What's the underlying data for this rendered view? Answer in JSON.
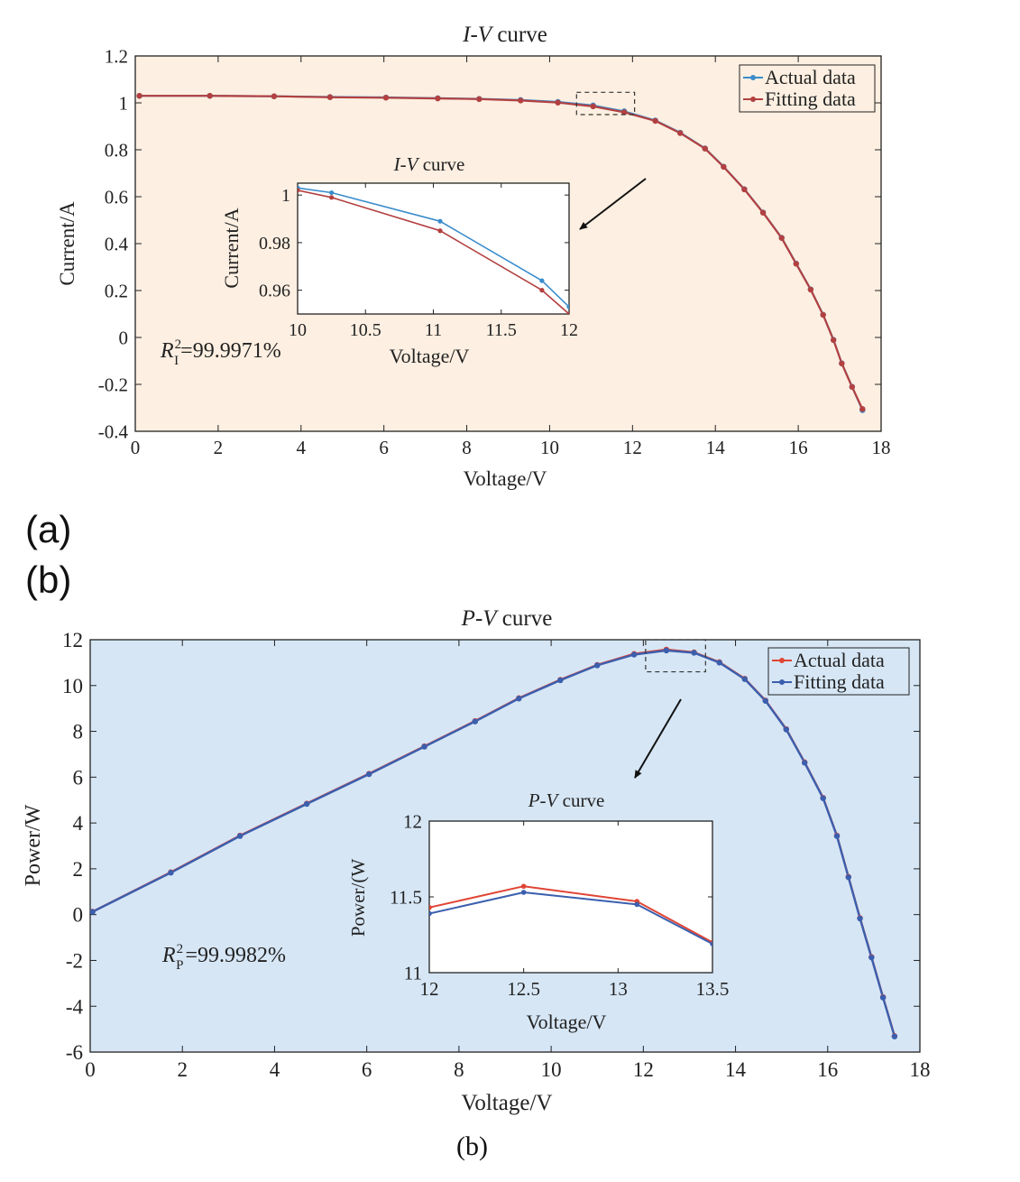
{
  "panel_labels": {
    "a": "(a)",
    "b": "(b)",
    "caption": "(b)"
  },
  "chart_data": [
    {
      "id": "iv-main",
      "type": "line",
      "title_italic": "I-V",
      "title_rest": " curve",
      "xlabel": "Voltage/V",
      "ylabel": "Current/A",
      "xlim": [
        0,
        18
      ],
      "ylim": [
        -0.4,
        1.2
      ],
      "xticks": [
        0,
        2,
        4,
        6,
        8,
        10,
        12,
        14,
        16,
        18
      ],
      "yticks": [
        -0.4,
        -0.2,
        0,
        0.2,
        0.4,
        0.6,
        0.8,
        1,
        1.2
      ],
      "ytick_labels": [
        "-0.4",
        "-0.2",
        "0",
        "0.2",
        "0.4",
        "0.6",
        "0.8",
        "1",
        "1.2"
      ],
      "annotation": {
        "prefix": "R",
        "sup": "2",
        "sub": "I",
        "value": "=99.9971%"
      },
      "background": "#fdefe1",
      "legend": {
        "position": "top-right",
        "entries": [
          "Actual data",
          "Fitting data"
        ]
      },
      "series": [
        {
          "name": "Actual data",
          "color": "#3a8ccc",
          "x": [
            0.1,
            1.8,
            3.35,
            4.7,
            6.05,
            7.3,
            8.3,
            9.3,
            10.2,
            11.05,
            11.8,
            12.55,
            13.15,
            13.75,
            14.2,
            14.7,
            15.15,
            15.6,
            15.95,
            16.3,
            16.6,
            16.85,
            17.05,
            17.3,
            17.55
          ],
          "y": [
            1.03,
            1.03,
            1.028,
            1.025,
            1.023,
            1.02,
            1.017,
            1.012,
            1.004,
            0.989,
            0.964,
            0.925,
            0.873,
            0.806,
            0.728,
            0.632,
            0.533,
            0.425,
            0.315,
            0.205,
            0.097,
            -0.01,
            -0.11,
            -0.21,
            -0.31
          ]
        },
        {
          "name": "Fitting data",
          "color": "#b34040",
          "x": [
            0.1,
            1.8,
            3.35,
            4.7,
            6.05,
            7.3,
            8.3,
            9.3,
            10.2,
            11.05,
            11.8,
            12.55,
            13.15,
            13.75,
            14.2,
            14.7,
            15.15,
            15.6,
            15.95,
            16.3,
            16.6,
            16.85,
            17.05,
            17.3,
            17.55
          ],
          "y": [
            1.03,
            1.03,
            1.028,
            1.024,
            1.022,
            1.019,
            1.016,
            1.01,
            1.001,
            0.985,
            0.96,
            0.923,
            0.871,
            0.805,
            0.727,
            0.631,
            0.532,
            0.424,
            0.314,
            0.204,
            0.096,
            -0.011,
            -0.111,
            -0.211,
            -0.305
          ]
        }
      ],
      "zoom_box": {
        "x": [
          10.65,
          12.05
        ],
        "y": [
          0.95,
          1.045
        ]
      }
    },
    {
      "id": "iv-inset",
      "type": "line",
      "title_italic": "I-V",
      "title_rest": " curve",
      "xlabel": "Voltage/V",
      "ylabel": "Current/A",
      "xlim": [
        10,
        12
      ],
      "ylim": [
        0.95,
        1.005
      ],
      "xticks": [
        10,
        10.5,
        11,
        11.5,
        12
      ],
      "yticks": [
        0.96,
        0.98,
        1
      ],
      "ytick_labels": [
        "0.96",
        "0.98",
        "1"
      ],
      "background": "#ffffff",
      "series": [
        {
          "name": "Actual data",
          "color": "#3a8ccc",
          "x": [
            10,
            10.25,
            11.05,
            11.8,
            12
          ],
          "y": [
            1.003,
            1.001,
            0.989,
            0.964,
            0.953
          ]
        },
        {
          "name": "Fitting data",
          "color": "#b34040",
          "x": [
            10,
            10.25,
            11.05,
            11.8,
            12
          ],
          "y": [
            1.002,
            0.999,
            0.985,
            0.96,
            0.95
          ]
        }
      ]
    },
    {
      "id": "pv-main",
      "type": "line",
      "title_italic": "P-V",
      "title_rest": " curve",
      "xlabel": "Voltage/V",
      "ylabel": "Power/W",
      "xlim": [
        0,
        18
      ],
      "ylim": [
        -6,
        12
      ],
      "xticks": [
        0,
        2,
        4,
        6,
        8,
        10,
        12,
        14,
        16,
        18
      ],
      "yticks": [
        -6,
        -4,
        -2,
        0,
        2,
        4,
        6,
        8,
        10,
        12
      ],
      "ytick_labels": [
        "-6",
        "-4",
        "-2",
        "0",
        "2",
        "4",
        "6",
        "8",
        "10",
        "12"
      ],
      "annotation": {
        "prefix": "R",
        "sup": "2",
        "sub": "P",
        "value": "=99.9982%"
      },
      "background": "#d6e6f5",
      "legend": {
        "position": "top-right",
        "entries": [
          "Actual data",
          "Fitting data"
        ]
      },
      "series": [
        {
          "name": "Actual data",
          "color": "#e04535",
          "x": [
            0.05,
            1.75,
            3.25,
            4.7,
            6.05,
            7.25,
            8.35,
            9.3,
            10.2,
            11.0,
            11.8,
            12.5,
            13.1,
            13.65,
            14.2,
            14.65,
            15.1,
            15.5,
            15.9,
            16.2,
            16.45,
            16.7,
            16.95,
            17.2,
            17.45
          ],
          "y": [
            0.13,
            1.85,
            3.45,
            4.85,
            6.15,
            7.35,
            8.45,
            9.45,
            10.25,
            10.9,
            11.38,
            11.57,
            11.45,
            11.02,
            10.3,
            9.35,
            8.1,
            6.65,
            5.1,
            3.45,
            1.65,
            -0.15,
            -1.85,
            -3.6,
            -5.3
          ]
        },
        {
          "name": "Fitting data",
          "color": "#3b5fae",
          "x": [
            0.05,
            1.75,
            3.25,
            4.7,
            6.05,
            7.25,
            8.35,
            9.3,
            10.2,
            11.0,
            11.8,
            12.5,
            13.1,
            13.65,
            14.2,
            14.65,
            15.1,
            15.5,
            15.9,
            16.2,
            16.45,
            16.7,
            16.95,
            17.2,
            17.45
          ],
          "y": [
            0.12,
            1.83,
            3.43,
            4.83,
            6.13,
            7.33,
            8.43,
            9.43,
            10.23,
            10.88,
            11.35,
            11.53,
            11.43,
            11.0,
            10.28,
            9.33,
            8.08,
            6.63,
            5.08,
            3.43,
            1.63,
            -0.17,
            -1.87,
            -3.62,
            -5.32
          ]
        }
      ],
      "zoom_box": {
        "x": [
          12.05,
          13.35
        ],
        "y": [
          10.6,
          12.0
        ]
      }
    },
    {
      "id": "pv-inset",
      "type": "line",
      "title_italic": "P-V",
      "title_rest": " curve",
      "xlabel": "Voltage/V",
      "ylabel": "Power/(W",
      "xlim": [
        12,
        13.5
      ],
      "ylim": [
        11,
        12
      ],
      "xticks": [
        12,
        12.5,
        13,
        13.5
      ],
      "yticks": [
        11,
        11.5,
        12
      ],
      "ytick_labels": [
        "11",
        "11.5",
        "12"
      ],
      "background": "#ffffff",
      "series": [
        {
          "name": "Actual data",
          "color": "#e04535",
          "x": [
            12,
            12.5,
            13.1,
            13.5
          ],
          "y": [
            11.43,
            11.57,
            11.47,
            11.2
          ]
        },
        {
          "name": "Fitting data",
          "color": "#3b5fae",
          "x": [
            12,
            12.5,
            13.1,
            13.5
          ],
          "y": [
            11.39,
            11.53,
            11.45,
            11.19
          ]
        }
      ]
    }
  ]
}
